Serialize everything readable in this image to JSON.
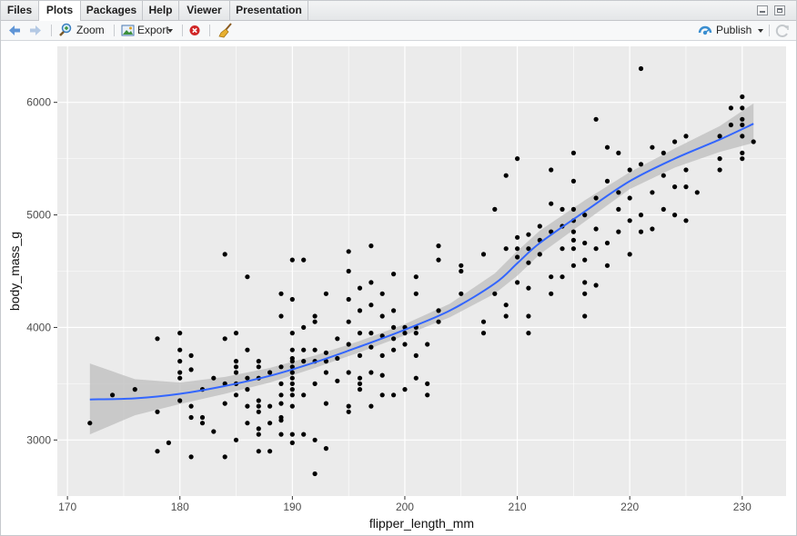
{
  "tabs": [
    {
      "label": "Files",
      "active": false
    },
    {
      "label": "Plots",
      "active": true
    },
    {
      "label": "Packages",
      "active": false
    },
    {
      "label": "Help",
      "active": false
    },
    {
      "label": "Viewer",
      "active": false
    },
    {
      "label": "Presentation",
      "active": false
    }
  ],
  "toolbar": {
    "zoom_label": "Zoom",
    "export_label": "Export",
    "publish_label": "Publish"
  },
  "icons": {
    "back": "arrow-left-icon",
    "forward": "arrow-right-icon",
    "zoom": "magnifier-icon",
    "export": "image-export-icon",
    "remove": "remove-plot-icon",
    "clear": "broom-icon",
    "publish": "publish-icon",
    "refresh": "refresh-icon"
  },
  "colors": {
    "panel_bg": "#ebebeb",
    "grid": "#ffffff",
    "points": "#000000",
    "smooth_line": "#3366ff",
    "ribbon": "#bdbdbd"
  },
  "chart_data": {
    "type": "scatter",
    "xlabel": "flipper_length_mm",
    "ylabel": "body_mass_g",
    "xlim": [
      169.1,
      233.9
    ],
    "ylim": [
      2502,
      6498
    ],
    "x_ticks": [
      170,
      180,
      190,
      200,
      210,
      220,
      230
    ],
    "y_ticks": [
      3000,
      4000,
      5000,
      6000
    ],
    "grid": true,
    "points": [
      [
        172,
        3150
      ],
      [
        174,
        3400
      ],
      [
        176,
        3450
      ],
      [
        178,
        3250
      ],
      [
        178,
        3900
      ],
      [
        178,
        2900
      ],
      [
        179,
        2975
      ],
      [
        180,
        3950
      ],
      [
        180,
        3800
      ],
      [
        180,
        3700
      ],
      [
        180,
        3600
      ],
      [
        180,
        3550
      ],
      [
        180,
        3350
      ],
      [
        181,
        3750
      ],
      [
        181,
        3300
      ],
      [
        181,
        3200
      ],
      [
        181,
        3625
      ],
      [
        181,
        2850
      ],
      [
        182,
        3450
      ],
      [
        182,
        3200
      ],
      [
        182,
        3150
      ],
      [
        183,
        3075
      ],
      [
        183,
        3550
      ],
      [
        184,
        4650
      ],
      [
        184,
        3900
      ],
      [
        184,
        3500
      ],
      [
        184,
        3325
      ],
      [
        184,
        2850
      ],
      [
        185,
        3950
      ],
      [
        185,
        3700
      ],
      [
        185,
        3650
      ],
      [
        185,
        3600
      ],
      [
        185,
        3500
      ],
      [
        185,
        3400
      ],
      [
        185,
        3000
      ],
      [
        186,
        3800
      ],
      [
        186,
        3550
      ],
      [
        186,
        3450
      ],
      [
        186,
        3300
      ],
      [
        186,
        3150
      ],
      [
        186,
        4450
      ],
      [
        187,
        3700
      ],
      [
        187,
        3650
      ],
      [
        187,
        3550
      ],
      [
        187,
        3350
      ],
      [
        187,
        3300
      ],
      [
        187,
        3250
      ],
      [
        187,
        3100
      ],
      [
        187,
        3050
      ],
      [
        187,
        2900
      ],
      [
        188,
        3600
      ],
      [
        188,
        3300
      ],
      [
        188,
        3150
      ],
      [
        188,
        2900
      ],
      [
        189,
        4300
      ],
      [
        189,
        4100
      ],
      [
        189,
        3650
      ],
      [
        189,
        3500
      ],
      [
        189,
        3400
      ],
      [
        189,
        3325
      ],
      [
        189,
        3200
      ],
      [
        189,
        3175
      ],
      [
        189,
        3050
      ],
      [
        190,
        4600
      ],
      [
        190,
        4250
      ],
      [
        190,
        3950
      ],
      [
        190,
        3800
      ],
      [
        190,
        3725
      ],
      [
        190,
        3700
      ],
      [
        190,
        3650
      ],
      [
        190,
        3600
      ],
      [
        190,
        3550
      ],
      [
        190,
        3500
      ],
      [
        190,
        3450
      ],
      [
        190,
        3400
      ],
      [
        190,
        3300
      ],
      [
        190,
        3050
      ],
      [
        190,
        2975
      ],
      [
        191,
        4600
      ],
      [
        191,
        4000
      ],
      [
        191,
        3800
      ],
      [
        191,
        3700
      ],
      [
        191,
        3400
      ],
      [
        191,
        3050
      ],
      [
        192,
        4100
      ],
      [
        192,
        4050
      ],
      [
        192,
        3800
      ],
      [
        192,
        3700
      ],
      [
        192,
        3500
      ],
      [
        192,
        3000
      ],
      [
        192,
        2700
      ],
      [
        193,
        4300
      ],
      [
        193,
        3775
      ],
      [
        193,
        3700
      ],
      [
        193,
        3600
      ],
      [
        193,
        3325
      ],
      [
        193,
        2925
      ],
      [
        194,
        3900
      ],
      [
        194,
        3725
      ],
      [
        194,
        3525
      ],
      [
        195,
        4675
      ],
      [
        195,
        4500
      ],
      [
        195,
        4250
      ],
      [
        195,
        4050
      ],
      [
        195,
        3850
      ],
      [
        195,
        3600
      ],
      [
        195,
        3300
      ],
      [
        195,
        3250
      ],
      [
        196,
        4350
      ],
      [
        196,
        4150
      ],
      [
        196,
        3950
      ],
      [
        196,
        3750
      ],
      [
        196,
        3550
      ],
      [
        196,
        3500
      ],
      [
        196,
        3450
      ],
      [
        197,
        4725
      ],
      [
        197,
        4400
      ],
      [
        197,
        4200
      ],
      [
        197,
        3950
      ],
      [
        197,
        3825
      ],
      [
        197,
        3600
      ],
      [
        197,
        3300
      ],
      [
        198,
        4300
      ],
      [
        198,
        4100
      ],
      [
        198,
        3925
      ],
      [
        198,
        3750
      ],
      [
        198,
        3575
      ],
      [
        198,
        3400
      ],
      [
        199,
        4475
      ],
      [
        199,
        4150
      ],
      [
        199,
        4000
      ],
      [
        199,
        3900
      ],
      [
        199,
        3800
      ],
      [
        199,
        3400
      ],
      [
        200,
        4000
      ],
      [
        200,
        3950
      ],
      [
        200,
        3850
      ],
      [
        200,
        3450
      ],
      [
        201,
        4450
      ],
      [
        201,
        4300
      ],
      [
        201,
        4000
      ],
      [
        201,
        3950
      ],
      [
        201,
        3750
      ],
      [
        201,
        3550
      ],
      [
        202,
        3850
      ],
      [
        202,
        3500
      ],
      [
        202,
        3400
      ],
      [
        203,
        4725
      ],
      [
        203,
        4600
      ],
      [
        203,
        4150
      ],
      [
        203,
        4050
      ],
      [
        205,
        4550
      ],
      [
        205,
        4500
      ],
      [
        205,
        4300
      ],
      [
        207,
        4650
      ],
      [
        207,
        4050
      ],
      [
        207,
        3950
      ],
      [
        208,
        5050
      ],
      [
        208,
        4300
      ],
      [
        209,
        5350
      ],
      [
        209,
        4700
      ],
      [
        209,
        4200
      ],
      [
        209,
        4100
      ],
      [
        210,
        5500
      ],
      [
        210,
        4800
      ],
      [
        210,
        4700
      ],
      [
        210,
        4625
      ],
      [
        210,
        4400
      ],
      [
        211,
        4825
      ],
      [
        211,
        4700
      ],
      [
        211,
        4575
      ],
      [
        211,
        4350
      ],
      [
        211,
        4100
      ],
      [
        211,
        3950
      ],
      [
        212,
        4900
      ],
      [
        212,
        4775
      ],
      [
        212,
        4650
      ],
      [
        213,
        5400
      ],
      [
        213,
        5100
      ],
      [
        213,
        4850
      ],
      [
        213,
        4450
      ],
      [
        213,
        4300
      ],
      [
        214,
        5050
      ],
      [
        214,
        4900
      ],
      [
        214,
        4700
      ],
      [
        214,
        4450
      ],
      [
        215,
        5550
      ],
      [
        215,
        5300
      ],
      [
        215,
        5050
      ],
      [
        215,
        4950
      ],
      [
        215,
        4850
      ],
      [
        215,
        4775
      ],
      [
        215,
        4700
      ],
      [
        215,
        4550
      ],
      [
        216,
        5000
      ],
      [
        216,
        4750
      ],
      [
        216,
        4600
      ],
      [
        216,
        4400
      ],
      [
        216,
        4300
      ],
      [
        216,
        4100
      ],
      [
        217,
        5850
      ],
      [
        217,
        5150
      ],
      [
        217,
        4875
      ],
      [
        217,
        4700
      ],
      [
        217,
        4375
      ],
      [
        218,
        5600
      ],
      [
        218,
        5300
      ],
      [
        218,
        4750
      ],
      [
        218,
        4550
      ],
      [
        219,
        5550
      ],
      [
        219,
        5200
      ],
      [
        219,
        5050
      ],
      [
        219,
        4850
      ],
      [
        220,
        5400
      ],
      [
        220,
        5150
      ],
      [
        220,
        4950
      ],
      [
        220,
        4650
      ],
      [
        221,
        6300
      ],
      [
        221,
        5450
      ],
      [
        221,
        5000
      ],
      [
        221,
        4850
      ],
      [
        222,
        5600
      ],
      [
        222,
        5200
      ],
      [
        222,
        4875
      ],
      [
        223,
        5550
      ],
      [
        223,
        5350
      ],
      [
        223,
        5050
      ],
      [
        224,
        5650
      ],
      [
        224,
        5250
      ],
      [
        224,
        5000
      ],
      [
        225,
        5700
      ],
      [
        225,
        5400
      ],
      [
        225,
        4950
      ],
      [
        225,
        5250
      ],
      [
        226,
        5200
      ],
      [
        228,
        5700
      ],
      [
        228,
        5500
      ],
      [
        228,
        5400
      ],
      [
        229,
        5950
      ],
      [
        229,
        5800
      ],
      [
        230,
        6050
      ],
      [
        230,
        5950
      ],
      [
        230,
        5850
      ],
      [
        230,
        5800
      ],
      [
        230,
        5700
      ],
      [
        230,
        5550
      ],
      [
        230,
        5500
      ],
      [
        231,
        5650
      ]
    ],
    "smooth_fit": {
      "x": [
        172,
        176,
        180,
        184,
        188,
        192,
        196,
        200,
        204,
        208,
        210,
        212,
        216,
        220,
        224,
        228,
        231
      ],
      "y": [
        3360,
        3370,
        3410,
        3480,
        3570,
        3690,
        3830,
        3980,
        4150,
        4390,
        4570,
        4750,
        5030,
        5300,
        5500,
        5670,
        5810
      ]
    },
    "confidence_band": {
      "x": [
        172,
        176,
        180,
        184,
        188,
        192,
        196,
        200,
        204,
        208,
        210,
        212,
        216,
        220,
        224,
        228,
        231
      ],
      "lower": [
        3050,
        3220,
        3320,
        3410,
        3510,
        3640,
        3780,
        3930,
        4090,
        4300,
        4460,
        4650,
        4940,
        5230,
        5420,
        5560,
        5640
      ],
      "upper": [
        3680,
        3540,
        3510,
        3560,
        3640,
        3750,
        3880,
        4030,
        4210,
        4480,
        4680,
        4860,
        5130,
        5380,
        5590,
        5790,
        5990
      ]
    }
  }
}
